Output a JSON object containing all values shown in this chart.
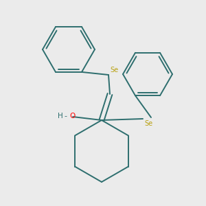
{
  "bg_color": "#ebebeb",
  "bond_color": "#2d6e6e",
  "se_color": "#b8a010",
  "o_color": "#ff0000",
  "h_color": "#2d6e6e",
  "line_width": 1.4,
  "fig_w": 3.0,
  "fig_h": 3.0,
  "dpi": 100,
  "xlim": [
    0,
    300
  ],
  "ylim": [
    0,
    300
  ]
}
